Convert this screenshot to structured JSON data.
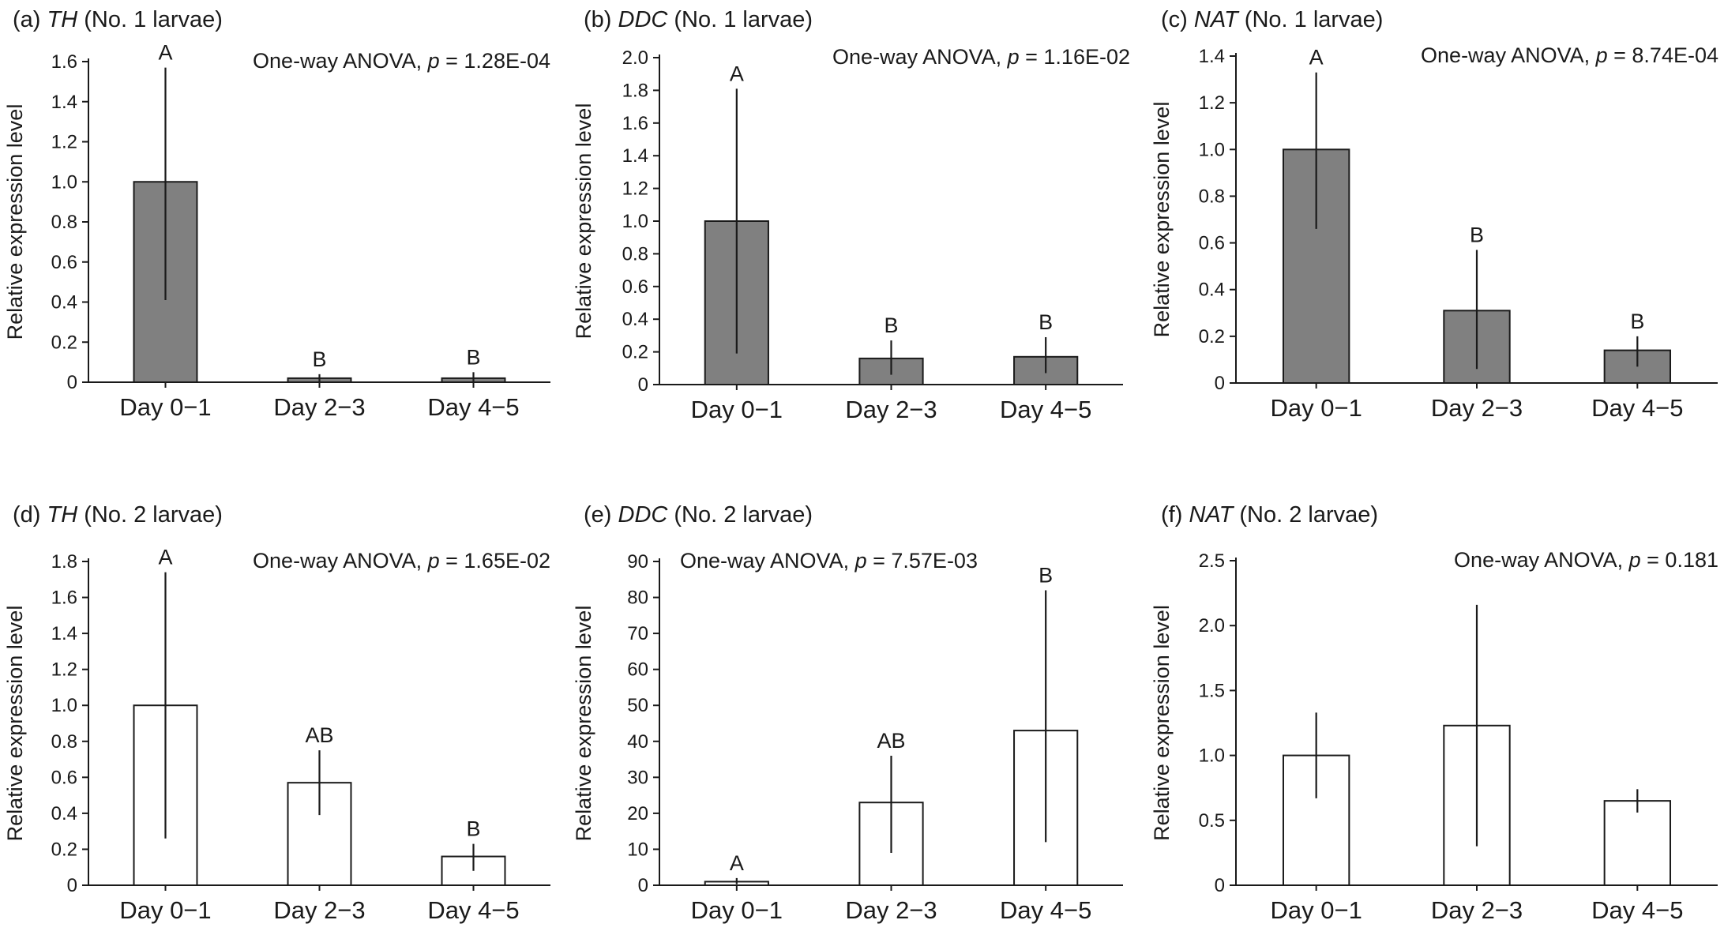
{
  "chart_data": [
    {
      "type": "bar",
      "panel_letter": "(a)",
      "gene": "TH",
      "subject": "(No. 1 larvae)",
      "stats_prefix": "One-way ANOVA, ",
      "p_label": "p",
      "p_value": "= 1.28E-04",
      "ylabel": "Relative expression level",
      "categories": [
        "Day 0−1",
        "Day 2−3",
        "Day 4−5"
      ],
      "values": [
        1.0,
        0.02,
        0.02
      ],
      "error_low": [
        0.41,
        0.0,
        0.0
      ],
      "error_high": [
        1.57,
        0.04,
        0.05
      ],
      "letters": [
        "A",
        "B",
        "B"
      ],
      "ylim": [
        0,
        1.6
      ],
      "yticks": [
        "0",
        "0.2",
        "0.4",
        "0.6",
        "0.8",
        "1.0",
        "1.2",
        "1.4",
        "1.6"
      ],
      "bar_color": "#808080"
    },
    {
      "type": "bar",
      "panel_letter": "(b)",
      "gene": "DDC",
      "subject": " (No. 1 larvae)",
      "stats_prefix": "One-way ANOVA, ",
      "p_label": "p",
      "p_value": "= 1.16E-02",
      "ylabel": "Relative expression level",
      "categories": [
        "Day 0−1",
        "Day 2−3",
        "Day 4−5"
      ],
      "values": [
        1.0,
        0.16,
        0.17
      ],
      "error_low": [
        0.19,
        0.06,
        0.07
      ],
      "error_high": [
        1.81,
        0.27,
        0.29
      ],
      "letters": [
        "A",
        "B",
        "B"
      ],
      "ylim": [
        0,
        2.0
      ],
      "yticks": [
        "0",
        "0.2",
        "0.4",
        "0.6",
        "0.8",
        "1.0",
        "1.2",
        "1.4",
        "1.6",
        "1.8",
        "2.0"
      ],
      "bar_color": "#808080"
    },
    {
      "type": "bar",
      "panel_letter": "(c)",
      "gene": "NAT",
      "subject": "(No. 1 larvae)",
      "stats_prefix": "One-way ANOVA, ",
      "p_label": "p",
      "p_value": "= 8.74E-04",
      "ylabel": "Relative expression level",
      "categories": [
        "Day 0−1",
        "Day 2−3",
        "Day 4−5"
      ],
      "values": [
        1.0,
        0.31,
        0.14
      ],
      "error_low": [
        0.66,
        0.06,
        0.07
      ],
      "error_high": [
        1.33,
        0.57,
        0.2
      ],
      "letters": [
        "A",
        "B",
        "B"
      ],
      "ylim": [
        0,
        1.4
      ],
      "yticks": [
        "0",
        "0.2",
        "0.4",
        "0.6",
        "0.8",
        "1.0",
        "1.2",
        "1.4"
      ],
      "bar_color": "#808080"
    },
    {
      "type": "bar",
      "panel_letter": "(d)",
      "gene": "TH",
      "subject": "(No. 2 larvae)",
      "stats_prefix": "One-way ANOVA, ",
      "p_label": "p",
      "p_value": "= 1.65E-02",
      "ylabel": "Relative expression level",
      "categories": [
        "Day 0−1",
        "Day 2−3",
        "Day 4−5"
      ],
      "values": [
        1.0,
        0.57,
        0.16
      ],
      "error_low": [
        0.26,
        0.39,
        0.08
      ],
      "error_high": [
        1.74,
        0.75,
        0.23
      ],
      "letters": [
        "A",
        "AB",
        "B"
      ],
      "ylim": [
        0,
        1.8
      ],
      "yticks": [
        "0",
        "0.2",
        "0.4",
        "0.6",
        "0.8",
        "1.0",
        "1.2",
        "1.4",
        "1.6",
        "1.8"
      ],
      "bar_color": "#ffffff"
    },
    {
      "type": "bar",
      "panel_letter": "(e)",
      "gene": "DDC",
      "subject": "(No. 2 larvae)",
      "stats_prefix": "One-way ANOVA, ",
      "p_label": "p",
      "p_value": "= 7.57E-03",
      "ylabel": "Relative expression level",
      "categories": [
        "Day 0−1",
        "Day 2−3",
        "Day 4−5"
      ],
      "values": [
        1.0,
        23.0,
        43.0
      ],
      "error_low": [
        0.3,
        9.0,
        12.0
      ],
      "error_high": [
        2.0,
        36.0,
        82.0
      ],
      "letters": [
        "A",
        "AB",
        "B"
      ],
      "ylim": [
        0,
        90
      ],
      "yticks": [
        "0",
        "10",
        "20",
        "30",
        "40",
        "50",
        "60",
        "70",
        "80",
        "90"
      ],
      "bar_color": "#ffffff"
    },
    {
      "type": "bar",
      "panel_letter": "(f)",
      "gene": "NAT",
      "subject": "(No. 2 larvae)",
      "stats_prefix": "One-way ANOVA, ",
      "p_label": "p",
      "p_value": "= 0.181",
      "ylabel": "Relative expression level",
      "categories": [
        "Day 0−1",
        "Day 2−3",
        "Day 4−5"
      ],
      "values": [
        1.0,
        1.23,
        0.65
      ],
      "error_low": [
        0.67,
        0.3,
        0.56
      ],
      "error_high": [
        1.33,
        2.16,
        0.74
      ],
      "letters": [
        "",
        "",
        ""
      ],
      "ylim": [
        0,
        2.5
      ],
      "yticks": [
        "0",
        "0.5",
        "1.0",
        "1.5",
        "2.0",
        "2.5"
      ],
      "bar_color": "#ffffff"
    }
  ]
}
